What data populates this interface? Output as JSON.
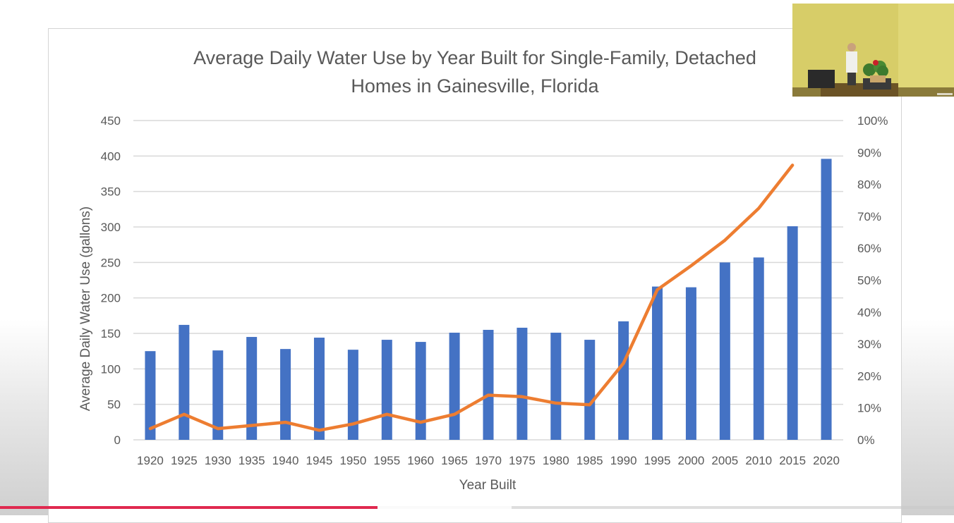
{
  "video": {
    "progress_percent": 39.6,
    "buffered_percent": 53.6
  },
  "colors": {
    "bar": "#4472c4",
    "line": "#ed7d31",
    "grid": "#d9d9d9",
    "text": "#595959"
  },
  "chart_data": {
    "type": "bar",
    "title_line1": "Average Daily Water Use by Year Built for Single-Family, Detached",
    "title_line2": "Homes in Gainesville, Florida",
    "xlabel": "Year Built",
    "ylabel": "Average Daily Water Use (gallons)",
    "categories": [
      "1920",
      "1925",
      "1930",
      "1935",
      "1940",
      "1945",
      "1950",
      "1955",
      "1960",
      "1965",
      "1970",
      "1975",
      "1980",
      "1985",
      "1990",
      "1995",
      "2000",
      "2005",
      "2010",
      "2015",
      "2020"
    ],
    "ylim": [
      0,
      450
    ],
    "yticks": [
      "0",
      "50",
      "100",
      "150",
      "200",
      "250",
      "300",
      "350",
      "400",
      "450"
    ],
    "y2lim": [
      0,
      100
    ],
    "y2ticks": [
      "0%",
      "10%",
      "20%",
      "30%",
      "40%",
      "50%",
      "60%",
      "70%",
      "80%",
      "90%",
      "100%"
    ],
    "series": [
      {
        "name": "Average Daily Water Use (gallons)",
        "type": "bar",
        "axis": "left",
        "values": [
          125,
          162,
          126,
          145,
          128,
          144,
          127,
          141,
          138,
          151,
          155,
          158,
          151,
          141,
          167,
          216,
          215,
          250,
          257,
          301,
          396
        ]
      },
      {
        "name": "Percent",
        "type": "line",
        "axis": "right",
        "values": [
          3.5,
          8.0,
          3.5,
          4.5,
          5.5,
          3.0,
          5.0,
          8.0,
          5.5,
          8.0,
          14.0,
          13.5,
          11.5,
          11.0,
          24.0,
          47.0,
          54.5,
          62.5,
          72.5,
          86.0,
          null
        ]
      }
    ]
  }
}
